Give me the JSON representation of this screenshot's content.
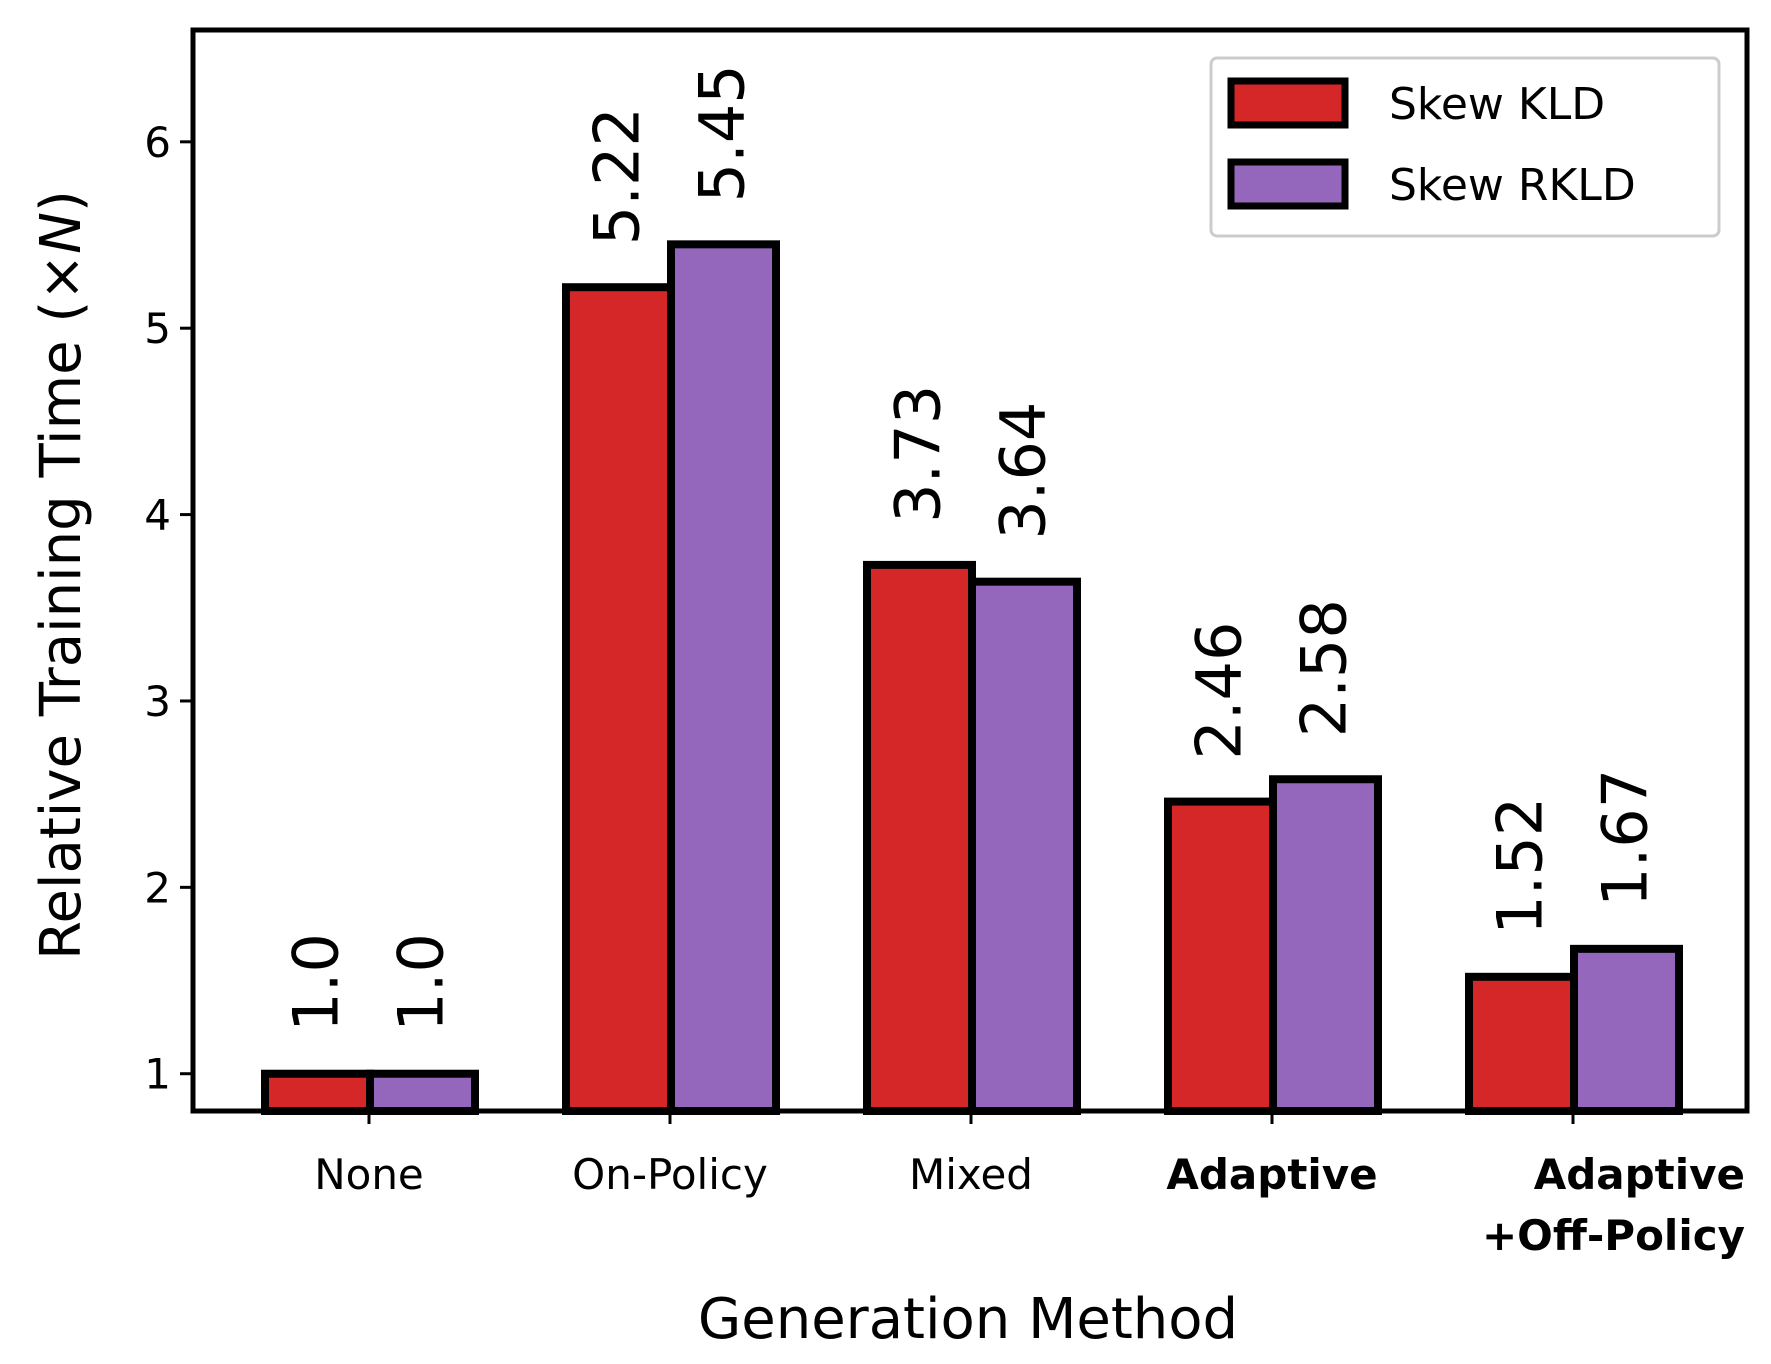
{
  "chart_data": {
    "type": "bar",
    "xlabel": "Generation Method",
    "ylabel": "Relative Training Time (×N)",
    "ylabel_parts": {
      "before": "Relative Training Time (×",
      "italic": "N",
      "after": ")"
    },
    "categories": [
      {
        "lines": [
          "None"
        ],
        "bold": false
      },
      {
        "lines": [
          "On-Policy"
        ],
        "bold": false
      },
      {
        "lines": [
          "Mixed"
        ],
        "bold": false
      },
      {
        "lines": [
          "Adaptive"
        ],
        "bold": true
      },
      {
        "lines": [
          "Adaptive",
          "+Off-Policy"
        ],
        "bold": true
      }
    ],
    "series": [
      {
        "name": "Skew KLD",
        "color": "#d62728",
        "values": [
          1.0,
          5.22,
          3.73,
          2.46,
          1.52
        ],
        "labels": [
          "1.0",
          "5.22",
          "3.73",
          "2.46",
          "1.52"
        ]
      },
      {
        "name": "Skew RKLD",
        "color": "#9467bd",
        "values": [
          1.0,
          5.45,
          3.64,
          2.58,
          1.67
        ],
        "labels": [
          "1.0",
          "5.45",
          "3.64",
          "2.58",
          "1.67"
        ]
      }
    ],
    "yticks": [
      1,
      2,
      3,
      4,
      5,
      6
    ],
    "ylim": [
      0.8,
      6.6
    ],
    "bar_edge_color": "#000000",
    "legend_position": "top-right",
    "grid": false
  }
}
